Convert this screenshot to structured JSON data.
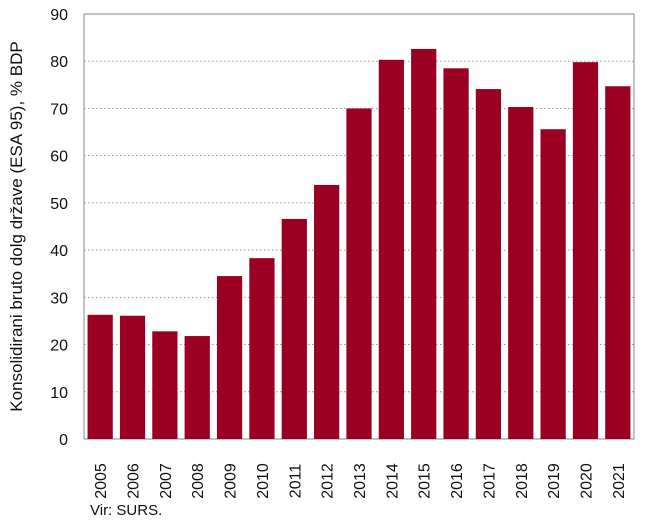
{
  "chart_data": {
    "type": "bar",
    "categories": [
      "2005",
      "2006",
      "2007",
      "2008",
      "2009",
      "2010",
      "2011",
      "2012",
      "2013",
      "2014",
      "2015",
      "2016",
      "2017",
      "2018",
      "2019",
      "2020",
      "2021"
    ],
    "values": [
      26.3,
      26.1,
      22.8,
      21.8,
      34.5,
      38.3,
      46.6,
      53.8,
      70.0,
      80.3,
      82.6,
      78.5,
      74.1,
      70.3,
      65.6,
      79.8,
      74.7
    ],
    "ylabel": "Konsolidirani bruto dolg države (ESA 95), % BDP",
    "xlabel": "",
    "ylim": [
      0,
      90
    ],
    "yticks": [
      0,
      10,
      20,
      30,
      40,
      50,
      60,
      70,
      80,
      90
    ],
    "grid": "horizontal-dotted",
    "bar_color": "#9b0023",
    "source": "Vir: SURS."
  }
}
